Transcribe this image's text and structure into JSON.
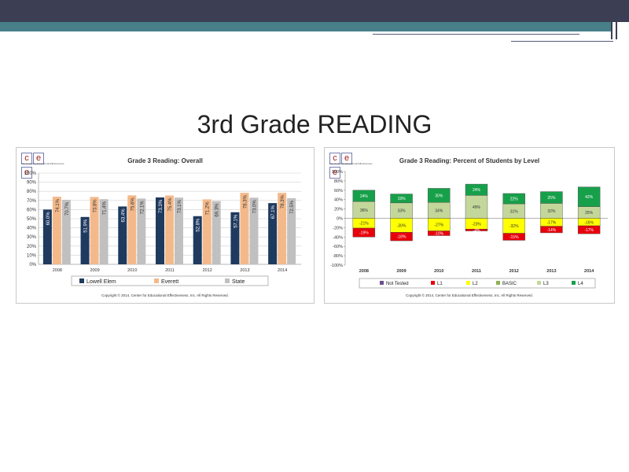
{
  "slide": {
    "title": "3rd Grade READING"
  },
  "chart_data": [
    {
      "type": "bar",
      "title": "Grade 3 Reading: Overall",
      "categories": [
        "2008",
        "2009",
        "2010",
        "2011",
        "2012",
        "2013",
        "2014"
      ],
      "series": [
        {
          "name": "Lowell Elem",
          "values": [
            60.0,
            51.9,
            63.4,
            73.3,
            52.8,
            57.1,
            67.1
          ],
          "labels": [
            "60.0%",
            "51.9%",
            "63.4%",
            "73.3%",
            "52.8%",
            "57.1%",
            "67.1%"
          ]
        },
        {
          "name": "Everett",
          "values": [
            74.1,
            73.8,
            75.6,
            75.4,
            71.2,
            78.3,
            78.3
          ],
          "labels": [
            "74.1%",
            "73.8%",
            "75.6%",
            "75.4%",
            "71.2%",
            "78.3%",
            "78.3%"
          ]
        },
        {
          "name": "State",
          "values": [
            70.7,
            71.4,
            72.1,
            73.1,
            69.3,
            73.0,
            72.5
          ],
          "labels": [
            "70.7%",
            "71.4%",
            "72.1%",
            "73.1%",
            "69.3%",
            "73.0%",
            "72.5%"
          ]
        }
      ],
      "ylim": [
        0,
        100
      ],
      "yticks": [
        "0%",
        "10%",
        "20%",
        "30%",
        "40%",
        "50%",
        "60%",
        "70%",
        "80%",
        "90%",
        "100%"
      ],
      "grid": true,
      "legend": "bottom",
      "colors": [
        "#1f3a5f",
        "#f4b98a",
        "#c0c0c0"
      ],
      "copyright": "Copyright © 2014, Center for Educational Effectiveness, Inc. All Rights Reserved."
    },
    {
      "type": "bar",
      "stacked": true,
      "title": "Grade 3 Reading: Percent of Students by Level",
      "categories": [
        "2008",
        "2009",
        "2010",
        "2011",
        "2012",
        "2013",
        "2014"
      ],
      "series": [
        {
          "name": "Not Tested",
          "values": [
            0,
            0,
            0,
            0,
            0,
            0,
            0
          ],
          "labels": [
            "",
            "",
            "",
            "",
            "",
            "",
            ""
          ]
        },
        {
          "name": "L1",
          "values": [
            -19,
            -18,
            -10,
            -4,
            -15,
            -14,
            -17
          ],
          "labels": [
            "-19%",
            "-18%",
            "-10%",
            "-4%",
            "-15%",
            "-14%",
            "-17%"
          ]
        },
        {
          "name": "L2",
          "values": [
            -21,
            -30,
            -27,
            -23,
            -32,
            -17,
            -16
          ],
          "labels": [
            "-21%",
            "-30%",
            "-27%",
            "-23%",
            "-32%",
            "-17%",
            "-16%"
          ]
        },
        {
          "name": "BASIC",
          "values": [
            0,
            0,
            0,
            0,
            0,
            0,
            0
          ],
          "labels": [
            "",
            "",
            "",
            "",
            "",
            "",
            ""
          ]
        },
        {
          "name": "L3",
          "values": [
            36,
            33,
            34,
            49,
            31,
            32,
            25
          ],
          "labels": [
            "36%",
            "33%",
            "34%",
            "49%",
            "31%",
            "32%",
            "25%"
          ]
        },
        {
          "name": "L4",
          "values": [
            24,
            19,
            30,
            24,
            22,
            25,
            42
          ],
          "labels": [
            "24%",
            "19%",
            "30%",
            "24%",
            "22%",
            "25%",
            "42%"
          ]
        }
      ],
      "ylim": [
        -100,
        100
      ],
      "yticks": [
        "-100%",
        "-80%",
        "-60%",
        "-40%",
        "-20%",
        "0%",
        "20%",
        "40%",
        "60%",
        "80%",
        "100%"
      ],
      "grid": false,
      "legend": "bottom",
      "colors": [
        "#6a4f8c",
        "#e8000b",
        "#ffff00",
        "#8fb04f",
        "#c4d79b",
        "#17a04a"
      ],
      "copyright": "Copyright © 2014, Center for Educational Effectiveness, Inc. All Rights Reserved."
    }
  ],
  "logo": {
    "letters": [
      "c",
      "e",
      "e"
    ],
    "tagline": "The Center for Educational Effectiveness"
  }
}
